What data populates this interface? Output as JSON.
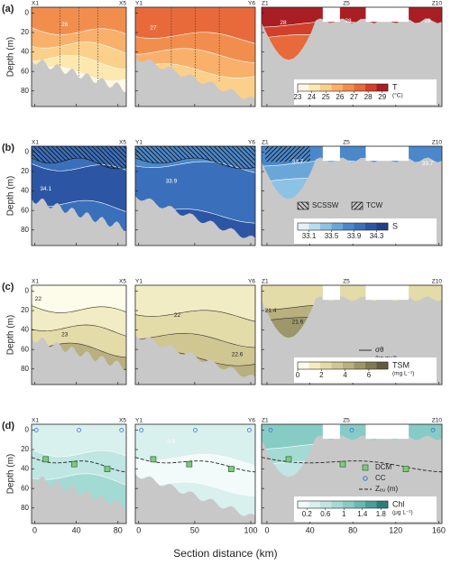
{
  "x_label": "Section distance (km)",
  "y_label": "Depth (m)",
  "ylim": [
    -6,
    96
  ],
  "yticks": [
    0,
    20,
    40,
    60,
    80
  ],
  "sections": [
    {
      "start": "X1",
      "end": "X5",
      "xlim": [
        -3,
        88
      ],
      "xticks": [
        0,
        40,
        80
      ]
    },
    {
      "start": "Y1",
      "end": "Y6",
      "xlim": [
        -3,
        104
      ],
      "xticks": [
        0,
        50,
        100
      ]
    },
    {
      "start": "Z1",
      "mid": "Z5",
      "end": "Z10",
      "xlim": [
        -5,
        163
      ],
      "xticks": [
        0,
        40,
        80,
        120,
        160
      ]
    }
  ],
  "rows": [
    {
      "tag": "(a)",
      "contour_labels": [
        26,
        27,
        28,
        28,
        28
      ],
      "colorbar": {
        "label": "T",
        "unit": "(°C)",
        "lim": [
          23,
          29.4
        ],
        "ticks": [
          23,
          24,
          25,
          26,
          27,
          28,
          29
        ],
        "colors": [
          "#fff8e6",
          "#fde8b0",
          "#fbd08a",
          "#f8b06a",
          "#f28e4d",
          "#e86a3a",
          "#d2402b",
          "#a81e22"
        ]
      }
    },
    {
      "tag": "(b)",
      "contour_labels": [
        34.1,
        33.9,
        33.7,
        33.7
      ],
      "legend": [
        {
          "label": "SCSSW"
        },
        {
          "label": "TCW"
        }
      ],
      "colorbar": {
        "label": "S",
        "lim": [
          32.9,
          34.5
        ],
        "ticks": [
          33.1,
          33.5,
          33.9,
          34.3
        ],
        "colors": [
          "#e4f1f8",
          "#b9dcee",
          "#8cc2e3",
          "#6aa7d8",
          "#4a88cb",
          "#3a6fbc",
          "#2c56a4",
          "#1f3f86"
        ]
      }
    },
    {
      "tag": "(c)",
      "contour_labels": [
        22,
        23,
        22,
        22.6,
        21.4,
        21.6
      ],
      "legend": [
        {
          "label": "σθ",
          "unit": "(kg m⁻³)"
        }
      ],
      "colorbar": {
        "label": "TSM",
        "unit": "(mg L⁻¹)",
        "lim": [
          0,
          7.6
        ],
        "ticks": [
          0,
          2,
          4,
          6
        ],
        "colors": [
          "#fdfbe9",
          "#f2ecc4",
          "#e3dba8",
          "#cfc692",
          "#b8b07e",
          "#9c966a",
          "#7e7a56",
          "#5f5c42"
        ]
      }
    },
    {
      "tag": "(d)",
      "contour_labels": [
        0.6
      ],
      "legend": [
        {
          "label": "DCM"
        },
        {
          "label": "CC"
        },
        {
          "label": "Zₑᵤ (m)"
        }
      ],
      "colorbar": {
        "label": "Chl",
        "unit": "(μg L⁻¹)",
        "lim": [
          0,
          1.95
        ],
        "ticks": [
          0.2,
          0.6,
          1,
          1.4,
          1.8
        ],
        "colors": [
          "#f2fafa",
          "#d8f0ee",
          "#bfe6e2",
          "#a3dad4",
          "#86ccc5",
          "#66bab3",
          "#479f9a",
          "#2a7f7c"
        ]
      }
    }
  ]
}
